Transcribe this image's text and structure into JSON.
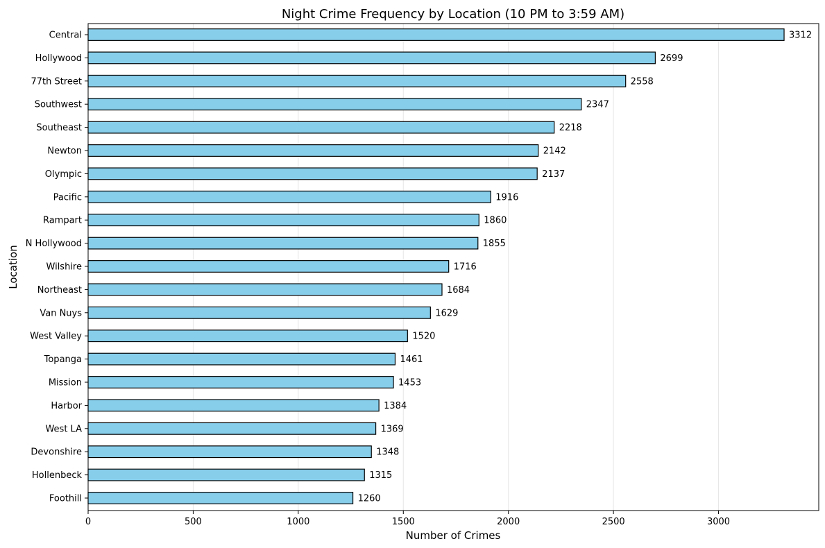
{
  "chart_data": {
    "type": "bar",
    "orientation": "horizontal",
    "title": "Night Crime Frequency by Location (10 PM to 3:59 AM)",
    "xlabel": "Number of Crimes",
    "ylabel": "Location",
    "categories": [
      "Central",
      "Hollywood",
      "77th Street",
      "Southwest",
      "Southeast",
      "Newton",
      "Olympic",
      "Pacific",
      "Rampart",
      "N Hollywood",
      "Wilshire",
      "Northeast",
      "Van Nuys",
      "West Valley",
      "Topanga",
      "Mission",
      "Harbor",
      "West LA",
      "Devonshire",
      "Hollenbeck",
      "Foothill"
    ],
    "values": [
      3312,
      2699,
      2558,
      2347,
      2218,
      2142,
      2137,
      1916,
      1860,
      1855,
      1716,
      1684,
      1629,
      1520,
      1461,
      1453,
      1384,
      1369,
      1348,
      1315,
      1260
    ],
    "value_labels": [
      "3312",
      "2699",
      "2558",
      "2347",
      "2218",
      "2142",
      "2137",
      "1916",
      "1860",
      "1855",
      "1716",
      "1684",
      "1629",
      "1520",
      "1461",
      "1453",
      "1384",
      "1369",
      "1348",
      "1315",
      "1260"
    ],
    "xlim": [
      0,
      3477
    ],
    "xticks": [
      0,
      500,
      1000,
      1500,
      2000,
      2500,
      3000
    ],
    "xtick_labels": [
      "0",
      "500",
      "1000",
      "1500",
      "2000",
      "2500",
      "3000"
    ],
    "grid": "x-axis vertical lines",
    "legend": "none",
    "bar_color": "#87ceeb",
    "bar_edge_color": "#000000",
    "grid_color": "#e6e6e6"
  }
}
